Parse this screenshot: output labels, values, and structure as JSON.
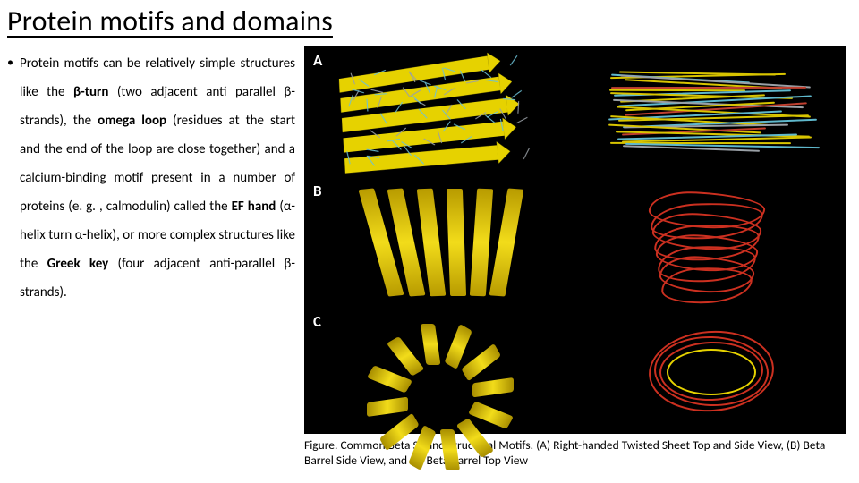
{
  "title": "Protein motifs and domains",
  "bullet_marker": "•",
  "body_html": "Protein motifs can be relatively simple structures like the <span class='bold'>β-turn</span> (two adjacent anti parallel β-strands), the <span class='bold'>omega loop</span> (residues at the start and the end of the loop are close together) and a calcium-binding motif present in a number of proteins (e. g. , calmodulin) called the <span class='bold'>EF hand</span> (α-helix turn α-helix), or more complex structures like the <span class='bold'>Greek key</span> (four adjacent anti-parallel β-strands).",
  "figure": {
    "background": "#000000",
    "panels": {
      "A": {
        "label": "A",
        "left_type": "twisted-sheet",
        "right_type": "sheet-side-view"
      },
      "B": {
        "label": "B",
        "left_type": "barrel-side-ribbon",
        "right_type": "barrel-side-wire"
      },
      "C": {
        "label": "C",
        "left_type": "barrel-top-ribbon",
        "right_type": "barrel-top-wire"
      }
    },
    "colors": {
      "ribbon_yellow": "#e6d200",
      "wire_red": "#cc3020",
      "stick_cyan": "#6cc0d6",
      "stick_grey": "#9aa0a6"
    }
  },
  "caption": "Figure. Common Beta Strand Structural Motifs. (A) Right-handed Twisted Sheet Top and Side View, (B) Beta Barrel Side View, and (C) Beta Barrel Top View"
}
